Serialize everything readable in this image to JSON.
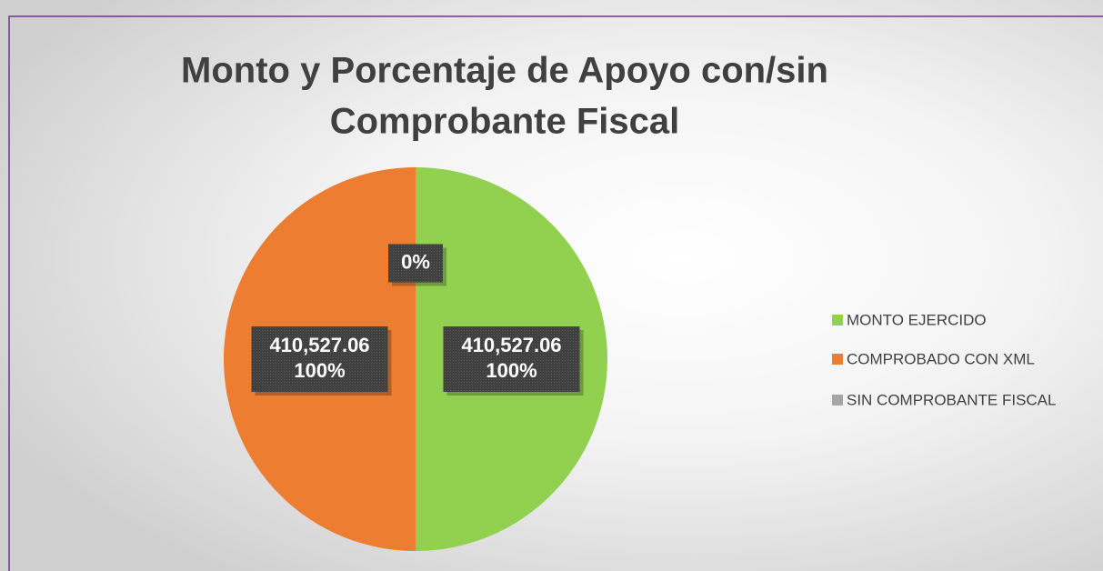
{
  "chart_data": {
    "type": "pie",
    "title": [
      "Monto y Porcentaje de Apoyo con/sin",
      "Comprobante Fiscal"
    ],
    "categories": [
      "MONTO EJERCIDO",
      "COMPROBADO CON XML",
      "SIN COMPROBANTE FISCAL"
    ],
    "values": [
      410527.06,
      410527.06,
      0
    ],
    "value_labels": [
      [
        "410,527.06",
        "100%"
      ],
      [
        "410,527.06",
        "100%"
      ],
      [
        "0%"
      ]
    ],
    "colors": [
      "#92d050",
      "#ed7d31",
      "#a5a5a5"
    ],
    "legend": "right"
  }
}
